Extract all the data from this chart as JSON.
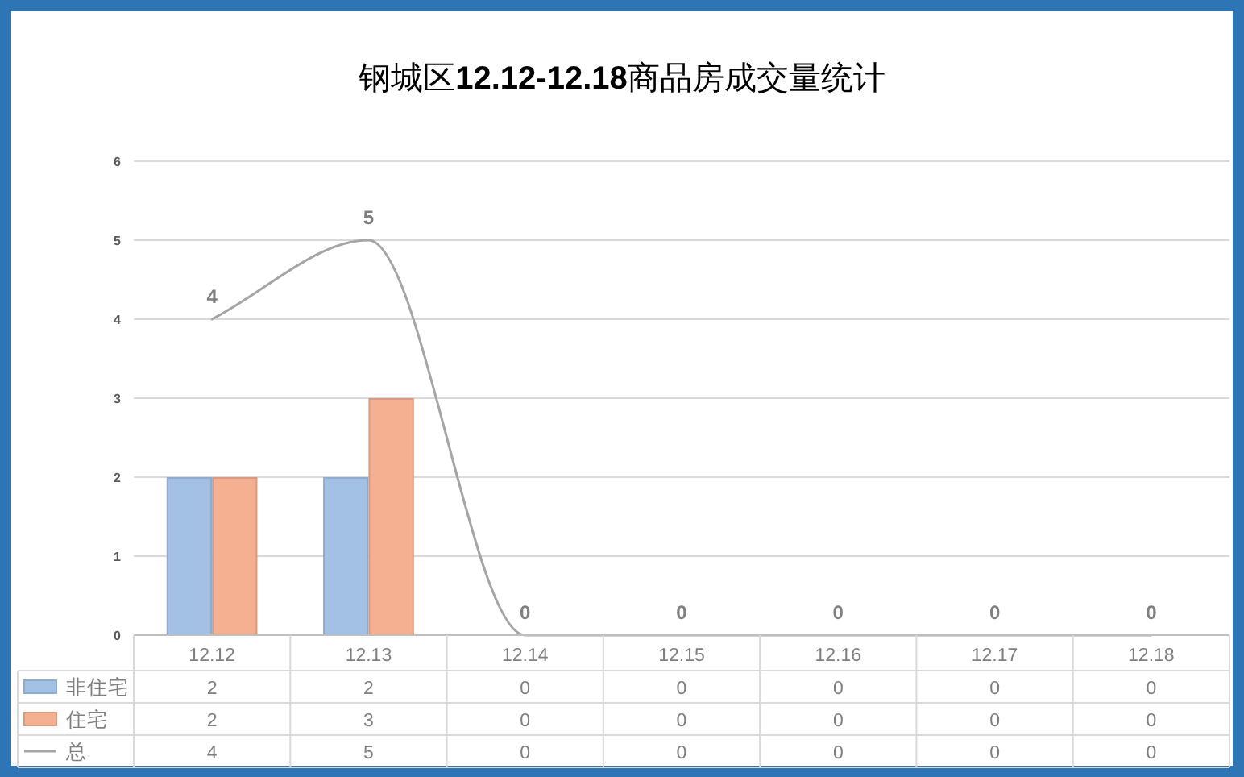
{
  "chart_data": {
    "type": "bar",
    "title": "钢城区12.12-12.18商品房成交量统计",
    "categories": [
      "12.12",
      "12.13",
      "12.14",
      "12.15",
      "12.16",
      "12.17",
      "12.18"
    ],
    "series": [
      {
        "name": "非住宅",
        "color": "#a3c1e5",
        "values": [
          2,
          2,
          0,
          0,
          0,
          0,
          0
        ]
      },
      {
        "name": "住宅",
        "color": "#f5b092",
        "values": [
          2,
          3,
          0,
          0,
          0,
          0,
          0
        ]
      },
      {
        "name": "总",
        "type": "line",
        "color": "#a5a5a5",
        "values": [
          4,
          5,
          0,
          0,
          0,
          0,
          0
        ]
      }
    ],
    "annotations": [
      {
        "text": "4",
        "x": "12.12",
        "y": 4
      },
      {
        "text": "5",
        "x": "12.13",
        "y": 5
      },
      {
        "text": "0",
        "x": "12.14",
        "y": 0
      },
      {
        "text": "0",
        "x": "12.15",
        "y": 0
      },
      {
        "text": "0",
        "x": "12.16",
        "y": 0
      },
      {
        "text": "0",
        "x": "12.17",
        "y": 0
      },
      {
        "text": "0",
        "x": "12.18",
        "y": 0
      }
    ],
    "ylim": [
      0,
      6
    ],
    "yticks": [
      0,
      1,
      2,
      3,
      4,
      5,
      6
    ],
    "grid": "y",
    "legend": "bottom",
    "data_labels": true
  }
}
